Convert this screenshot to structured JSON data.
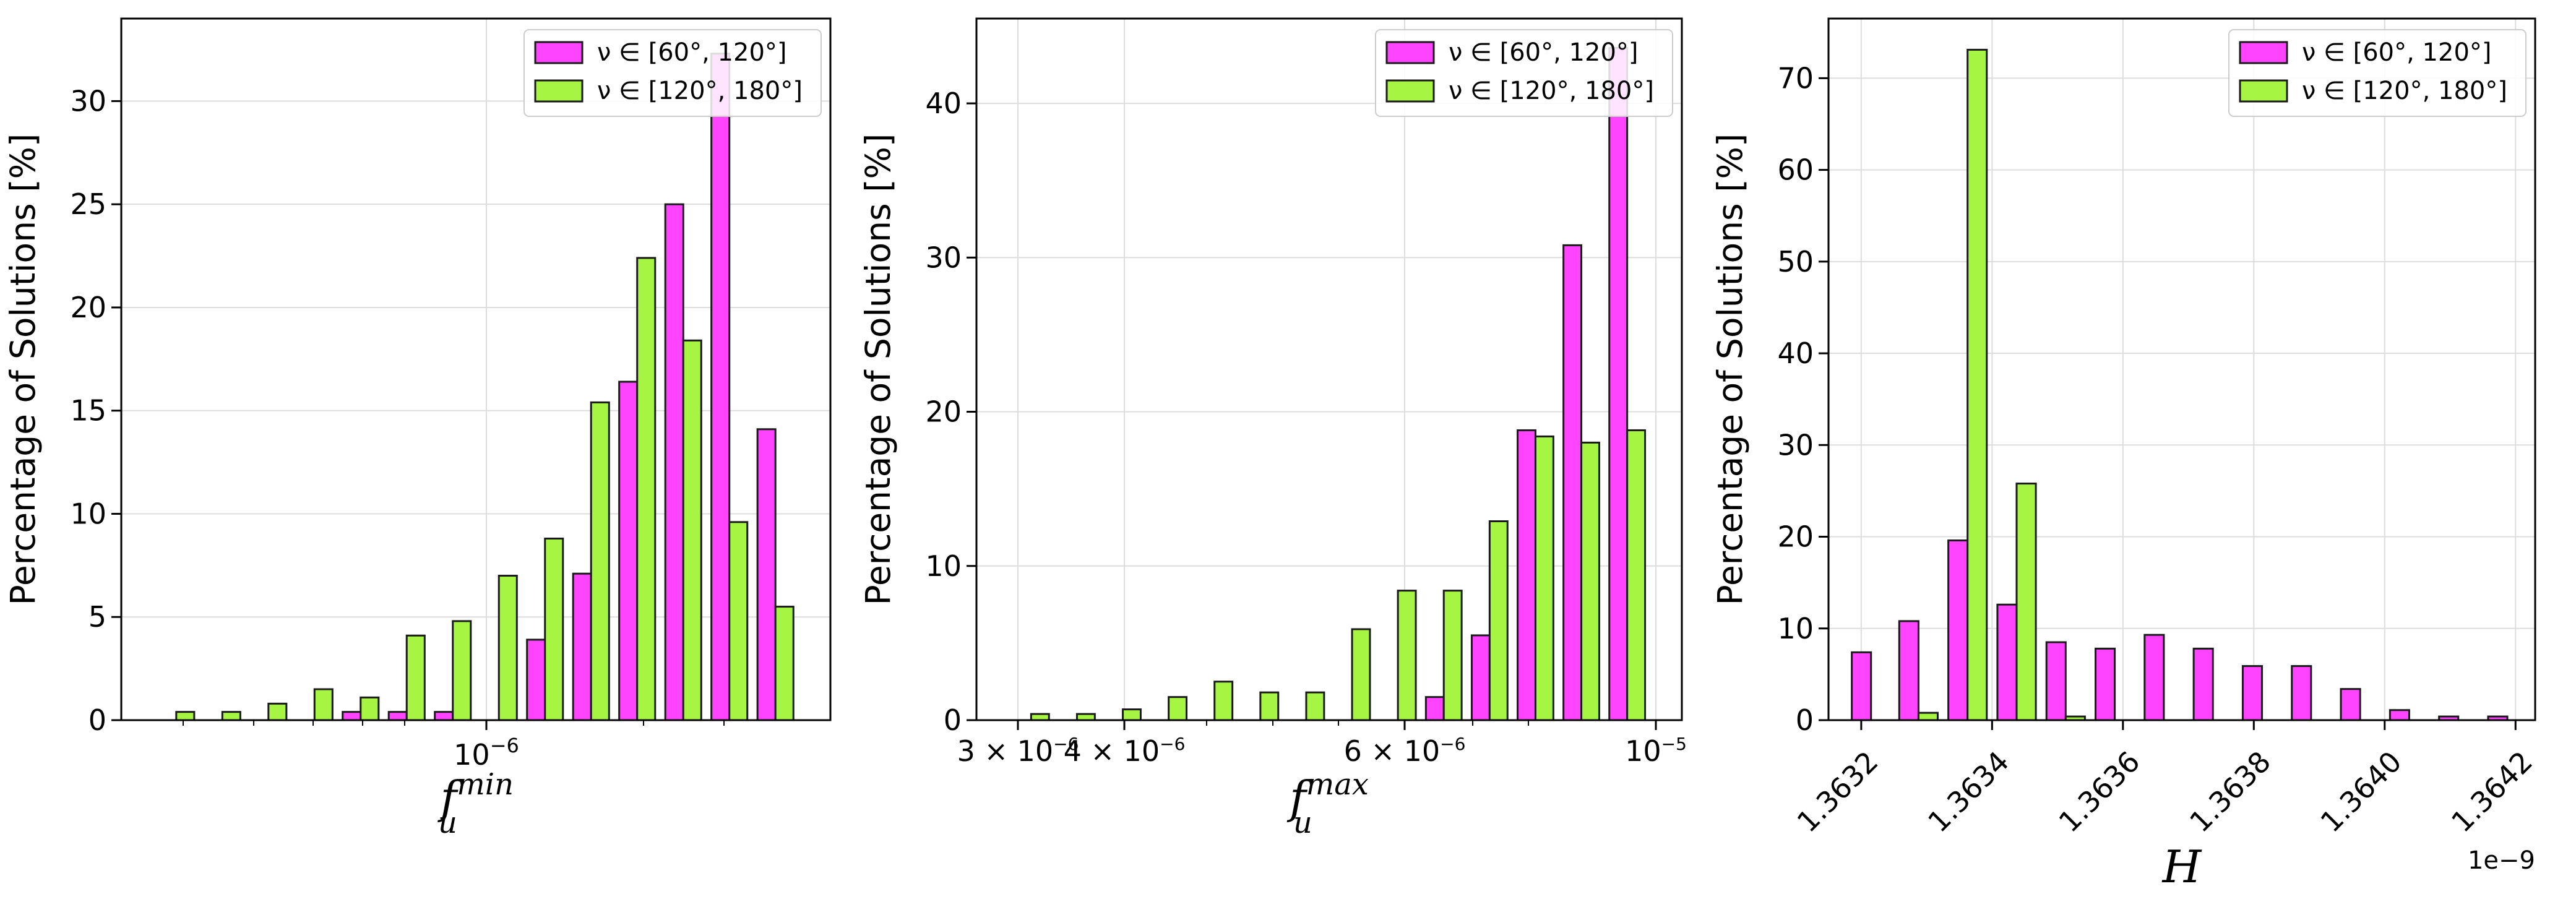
{
  "colors": {
    "series_a": "#ff44ff",
    "series_b": "#a6f542",
    "edge": "#1a1a1a",
    "grid": "#dddddd"
  },
  "legend": {
    "placement": "top-right",
    "entries": [
      "ν ∈ [60°, 120°]",
      "ν ∈ [120°, 180°]"
    ]
  },
  "chart_data": [
    {
      "type": "bar",
      "ylabel": "Percentage of Solutions [%]",
      "xlabel_main": "f",
      "xlabel_sub": "u",
      "xlabel_sup": "min",
      "xscale": "log",
      "grid": true,
      "ylim": [
        0,
        34
      ],
      "yticks": [
        0,
        5,
        10,
        15,
        20,
        25,
        30
      ],
      "xtick_labels": [
        {
          "text": "10",
          "sup": "−6"
        }
      ],
      "bins": 14,
      "series": [
        {
          "name": "ν ∈ [60°, 120°]",
          "values": [
            0,
            0,
            0,
            0,
            0.4,
            0.4,
            0.4,
            0,
            3.9,
            7.1,
            16.4,
            25.0,
            32.3,
            14.1
          ]
        },
        {
          "name": "ν ∈ [120°, 180°]",
          "values": [
            0.4,
            0.4,
            0.8,
            1.5,
            1.1,
            4.1,
            4.8,
            7.0,
            8.8,
            15.4,
            22.4,
            18.4,
            9.6,
            5.5
          ]
        }
      ]
    },
    {
      "type": "bar",
      "ylabel": "Percentage of Solutions [%]",
      "xlabel_main": "f",
      "xlabel_sub": "u",
      "xlabel_sup": "max",
      "xscale": "log",
      "grid": true,
      "ylim": [
        0,
        45.5
      ],
      "yticks": [
        0,
        10,
        20,
        30,
        40
      ],
      "xtick_labels": [
        {
          "text": "3 × 10",
          "sup": "−6"
        },
        {
          "text": "4 × 10",
          "sup": "−6"
        },
        {
          "text": "6 × 10",
          "sup": "−6"
        },
        {
          "text": "10",
          "sup": "−5"
        }
      ],
      "bins": 14,
      "series": [
        {
          "name": "ν ∈ [60°, 120°]",
          "values": [
            0,
            0,
            0,
            0,
            0,
            0,
            0,
            0,
            0,
            1.5,
            5.5,
            18.8,
            30.8,
            43.6
          ]
        },
        {
          "name": "ν ∈ [120°, 180°]",
          "values": [
            0.4,
            0.4,
            0.7,
            1.5,
            2.5,
            1.8,
            1.8,
            5.9,
            8.4,
            8.4,
            12.9,
            18.4,
            18.0,
            18.8
          ]
        }
      ]
    },
    {
      "type": "bar",
      "ylabel": "Percentage of Solutions [%]",
      "xlabel_main": "H",
      "offset_text": "1e−9",
      "grid": true,
      "ylim": [
        0,
        76.5
      ],
      "yticks": [
        0,
        10,
        20,
        30,
        40,
        50,
        60,
        70
      ],
      "xlim": [
        1.36315,
        1.36423
      ],
      "xticks": [
        1.3632,
        1.3634,
        1.3636,
        1.3638,
        1.364,
        1.3642
      ],
      "xtick_labels": [
        "1.3632",
        "1.3634",
        "1.3636",
        "1.3638",
        "1.3640",
        "1.3642"
      ],
      "bin_edges": [
        1.36318,
        1.36325,
        1.363325,
        1.3634,
        1.363475,
        1.36355,
        1.363625,
        1.3637,
        1.363775,
        1.36385,
        1.363925,
        1.364,
        1.364075,
        1.36415,
        1.364225
      ],
      "series": [
        {
          "name": "ν ∈ [60°, 120°]",
          "values": [
            7.4,
            10.8,
            19.6,
            12.6,
            8.5,
            7.8,
            9.3,
            7.8,
            5.9,
            5.9,
            3.4,
            1.1,
            0.4,
            0.4
          ]
        },
        {
          "name": "ν ∈ [120°, 180°]",
          "values": [
            0,
            0.8,
            73.1,
            25.8,
            0.4,
            0,
            0,
            0,
            0,
            0,
            0,
            0,
            0,
            0
          ]
        }
      ]
    }
  ]
}
